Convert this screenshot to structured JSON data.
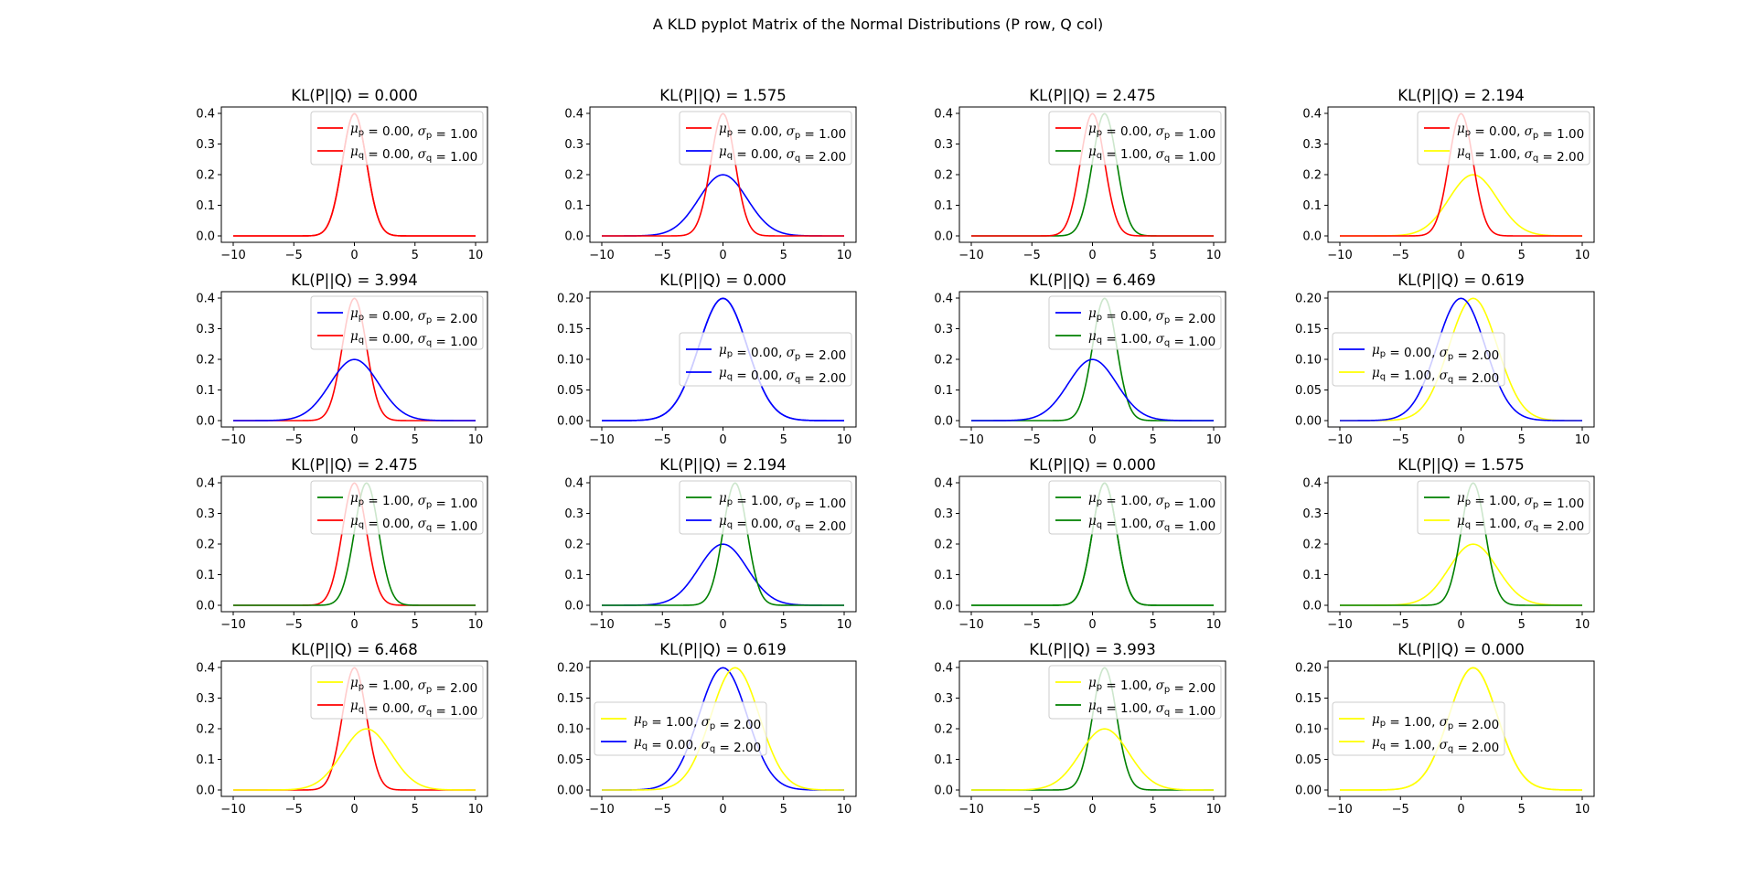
{
  "figure": {
    "title": "A KLD pyplot Matrix of the Normal Distributions (P row, Q col)"
  },
  "colors": {
    "red": "#ff0000",
    "blue": "#0000ff",
    "green": "#008000",
    "yellow": "#ffff00"
  },
  "chart_data": {
    "type": "line",
    "layout": "4x4 grid",
    "grid": false,
    "x_ticks": [
      "−10",
      "−5",
      "0",
      "5",
      "10"
    ],
    "xlim": [
      -10,
      10
    ],
    "distributions": [
      {
        "mu": 0,
        "sigma": 1,
        "color": "red"
      },
      {
        "mu": 0,
        "sigma": 2,
        "color": "blue"
      },
      {
        "mu": 1,
        "sigma": 1,
        "color": "green"
      },
      {
        "mu": 1,
        "sigma": 2,
        "color": "yellow"
      }
    ],
    "panels": [
      {
        "title": "KL(P||Q) = 0.000",
        "p": 0,
        "q": 0,
        "legend": "top-right",
        "ylim": [
          0,
          0.4
        ],
        "y_ticks": [
          "0.0",
          "0.1",
          "0.2",
          "0.3",
          "0.4"
        ],
        "legend_p": "= 0.00, ",
        "legend_p2": "= 1.00",
        "legend_q": "= 0.00, ",
        "legend_q2": "= 1.00"
      },
      {
        "title": "KL(P||Q) = 1.575",
        "p": 0,
        "q": 1,
        "legend": "top-right",
        "ylim": [
          0,
          0.4
        ],
        "y_ticks": [
          "0.0",
          "0.1",
          "0.2",
          "0.3",
          "0.4"
        ],
        "legend_p": "= 0.00, ",
        "legend_p2": "= 1.00",
        "legend_q": "= 0.00, ",
        "legend_q2": "= 2.00"
      },
      {
        "title": "KL(P||Q) = 2.475",
        "p": 0,
        "q": 2,
        "legend": "top-right",
        "ylim": [
          0,
          0.4
        ],
        "y_ticks": [
          "0.0",
          "0.1",
          "0.2",
          "0.3",
          "0.4"
        ],
        "legend_p": "= 0.00, ",
        "legend_p2": "= 1.00",
        "legend_q": "= 1.00, ",
        "legend_q2": "= 1.00"
      },
      {
        "title": "KL(P||Q) = 2.194",
        "p": 0,
        "q": 3,
        "legend": "top-right",
        "ylim": [
          0,
          0.4
        ],
        "y_ticks": [
          "0.0",
          "0.1",
          "0.2",
          "0.3",
          "0.4"
        ],
        "legend_p": "= 0.00, ",
        "legend_p2": "= 1.00",
        "legend_q": "= 1.00, ",
        "legend_q2": "= 2.00"
      },
      {
        "title": "KL(P||Q) = 3.994",
        "p": 1,
        "q": 0,
        "legend": "top-right",
        "ylim": [
          0,
          0.4
        ],
        "y_ticks": [
          "0.0",
          "0.1",
          "0.2",
          "0.3",
          "0.4"
        ],
        "legend_p": "= 0.00, ",
        "legend_p2": "= 2.00",
        "legend_q": "= 0.00, ",
        "legend_q2": "= 1.00"
      },
      {
        "title": "KL(P||Q) = 0.000",
        "p": 1,
        "q": 1,
        "legend": "center-right",
        "ylim": [
          0,
          0.2
        ],
        "y_ticks": [
          "0.00",
          "0.05",
          "0.10",
          "0.15",
          "0.20"
        ],
        "legend_p": "= 0.00, ",
        "legend_p2": "= 2.00",
        "legend_q": "= 0.00, ",
        "legend_q2": "= 2.00"
      },
      {
        "title": "KL(P||Q) = 6.469",
        "p": 1,
        "q": 2,
        "legend": "top-right",
        "ylim": [
          0,
          0.4
        ],
        "y_ticks": [
          "0.0",
          "0.1",
          "0.2",
          "0.3",
          "0.4"
        ],
        "legend_p": "= 0.00, ",
        "legend_p2": "= 2.00",
        "legend_q": "= 1.00, ",
        "legend_q2": "= 1.00"
      },
      {
        "title": "KL(P||Q) = 0.619",
        "p": 1,
        "q": 3,
        "legend": "center-left",
        "ylim": [
          0,
          0.2
        ],
        "y_ticks": [
          "0.00",
          "0.05",
          "0.10",
          "0.15",
          "0.20"
        ],
        "legend_p": "= 0.00, ",
        "legend_p2": "= 2.00",
        "legend_q": "= 1.00, ",
        "legend_q2": "= 2.00"
      },
      {
        "title": "KL(P||Q) = 2.475",
        "p": 2,
        "q": 0,
        "legend": "top-right",
        "ylim": [
          0,
          0.4
        ],
        "y_ticks": [
          "0.0",
          "0.1",
          "0.2",
          "0.3",
          "0.4"
        ],
        "legend_p": "= 1.00, ",
        "legend_p2": "= 1.00",
        "legend_q": "= 0.00, ",
        "legend_q2": "= 1.00"
      },
      {
        "title": "KL(P||Q) = 2.194",
        "p": 2,
        "q": 1,
        "legend": "top-right",
        "ylim": [
          0,
          0.4
        ],
        "y_ticks": [
          "0.0",
          "0.1",
          "0.2",
          "0.3",
          "0.4"
        ],
        "legend_p": "= 1.00, ",
        "legend_p2": "= 1.00",
        "legend_q": "= 0.00, ",
        "legend_q2": "= 2.00"
      },
      {
        "title": "KL(P||Q) = 0.000",
        "p": 2,
        "q": 2,
        "legend": "top-right",
        "ylim": [
          0,
          0.4
        ],
        "y_ticks": [
          "0.0",
          "0.1",
          "0.2",
          "0.3",
          "0.4"
        ],
        "legend_p": "= 1.00, ",
        "legend_p2": "= 1.00",
        "legend_q": "= 1.00, ",
        "legend_q2": "= 1.00"
      },
      {
        "title": "KL(P||Q) = 1.575",
        "p": 2,
        "q": 3,
        "legend": "top-right",
        "ylim": [
          0,
          0.4
        ],
        "y_ticks": [
          "0.0",
          "0.1",
          "0.2",
          "0.3",
          "0.4"
        ],
        "legend_p": "= 1.00, ",
        "legend_p2": "= 1.00",
        "legend_q": "= 1.00, ",
        "legend_q2": "= 2.00"
      },
      {
        "title": "KL(P||Q) = 6.468",
        "p": 3,
        "q": 0,
        "legend": "top-right",
        "ylim": [
          0,
          0.4
        ],
        "y_ticks": [
          "0.0",
          "0.1",
          "0.2",
          "0.3",
          "0.4"
        ],
        "legend_p": "= 1.00, ",
        "legend_p2": "= 2.00",
        "legend_q": "= 0.00, ",
        "legend_q2": "= 1.00"
      },
      {
        "title": "KL(P||Q) = 0.619",
        "p": 3,
        "q": 1,
        "legend": "center-left",
        "ylim": [
          0,
          0.2
        ],
        "y_ticks": [
          "0.00",
          "0.05",
          "0.10",
          "0.15",
          "0.20"
        ],
        "legend_p": "= 1.00, ",
        "legend_p2": "= 2.00",
        "legend_q": "= 0.00, ",
        "legend_q2": "= 2.00"
      },
      {
        "title": "KL(P||Q) = 3.993",
        "p": 3,
        "q": 2,
        "legend": "top-right",
        "ylim": [
          0,
          0.4
        ],
        "y_ticks": [
          "0.0",
          "0.1",
          "0.2",
          "0.3",
          "0.4"
        ],
        "legend_p": "= 1.00, ",
        "legend_p2": "= 2.00",
        "legend_q": "= 1.00, ",
        "legend_q2": "= 1.00"
      },
      {
        "title": "KL(P||Q) = 0.000",
        "p": 3,
        "q": 3,
        "legend": "center-left",
        "ylim": [
          0,
          0.2
        ],
        "y_ticks": [
          "0.00",
          "0.05",
          "0.10",
          "0.15",
          "0.20"
        ],
        "legend_p": "= 1.00, ",
        "legend_p2": "= 2.00",
        "legend_q": "= 1.00, ",
        "legend_q2": "= 2.00"
      }
    ]
  }
}
